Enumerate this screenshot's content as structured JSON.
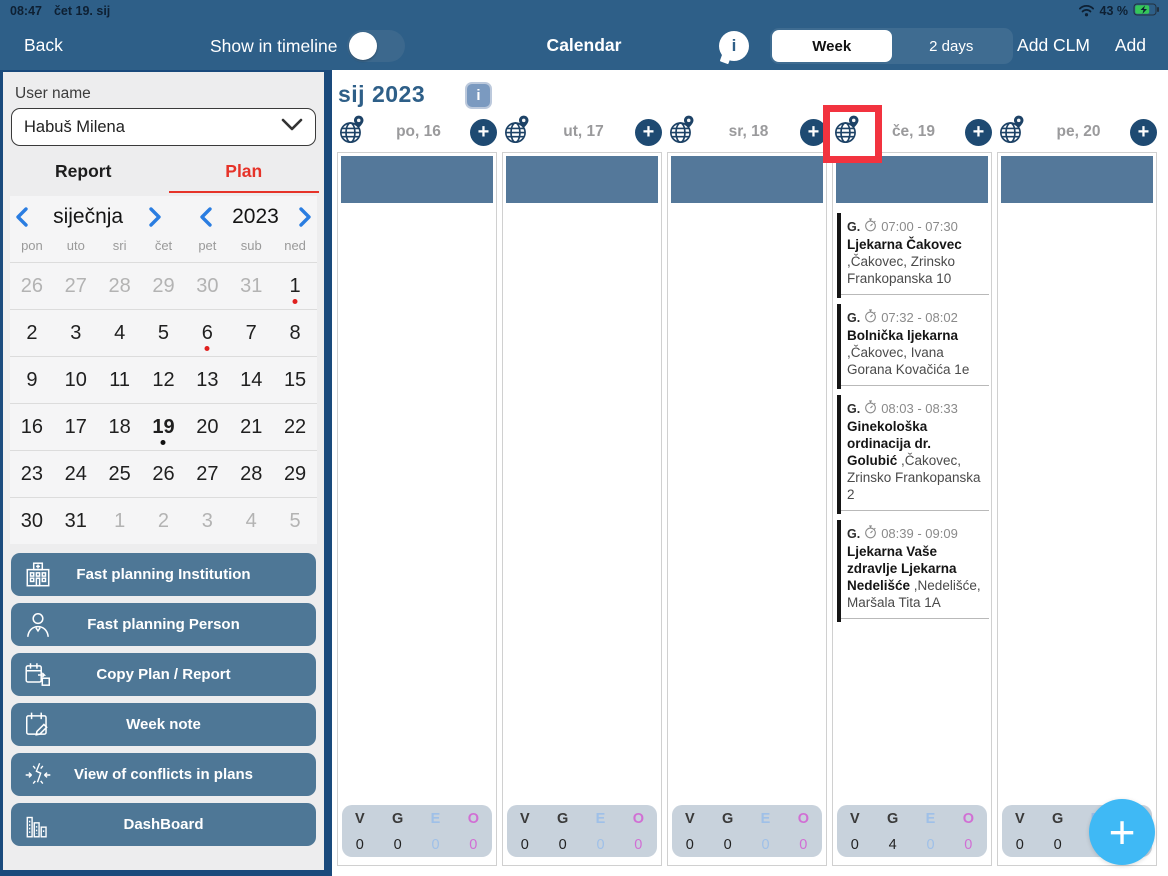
{
  "status_bar": {
    "time": "08:47",
    "date": "čet 19. sij",
    "battery": "43 %"
  },
  "nav": {
    "back": "Back",
    "show_in_timeline": "Show in timeline",
    "toggle_state": "off",
    "title": "Calendar",
    "segments": {
      "week": "Week",
      "two_days": "2 days",
      "selected": "Week"
    },
    "add_clm": "Add CLM",
    "add": "Add"
  },
  "sidebar": {
    "user_name_label": "User name",
    "user_select_value": "Habuš Milena",
    "tabs": {
      "report": "Report",
      "plan": "Plan",
      "active": "Plan"
    },
    "month_nav": {
      "month": "siječnja",
      "year": "2023"
    },
    "weekdays": [
      "pon",
      "uto",
      "sri",
      "čet",
      "pet",
      "sub",
      "ned"
    ],
    "calendar_rows": [
      [
        {
          "d": "26",
          "muted": true
        },
        {
          "d": "27",
          "muted": true
        },
        {
          "d": "28",
          "muted": true
        },
        {
          "d": "29",
          "muted": true
        },
        {
          "d": "30",
          "muted": true
        },
        {
          "d": "31",
          "muted": true
        },
        {
          "d": "1",
          "dot": "red"
        }
      ],
      [
        {
          "d": "2"
        },
        {
          "d": "3"
        },
        {
          "d": "4"
        },
        {
          "d": "5"
        },
        {
          "d": "6",
          "dot": "red"
        },
        {
          "d": "7"
        },
        {
          "d": "8"
        }
      ],
      [
        {
          "d": "9"
        },
        {
          "d": "10"
        },
        {
          "d": "11"
        },
        {
          "d": "12"
        },
        {
          "d": "13"
        },
        {
          "d": "14"
        },
        {
          "d": "15"
        }
      ],
      [
        {
          "d": "16"
        },
        {
          "d": "17"
        },
        {
          "d": "18"
        },
        {
          "d": "19",
          "bold": true,
          "dot": "black"
        },
        {
          "d": "20"
        },
        {
          "d": "21"
        },
        {
          "d": "22"
        }
      ],
      [
        {
          "d": "23"
        },
        {
          "d": "24"
        },
        {
          "d": "25"
        },
        {
          "d": "26"
        },
        {
          "d": "27"
        },
        {
          "d": "28"
        },
        {
          "d": "29"
        }
      ],
      [
        {
          "d": "30"
        },
        {
          "d": "31"
        },
        {
          "d": "1",
          "muted": true
        },
        {
          "d": "2",
          "muted": true
        },
        {
          "d": "3",
          "muted": true
        },
        {
          "d": "4",
          "muted": true
        },
        {
          "d": "5",
          "muted": true
        }
      ]
    ],
    "buttons": [
      {
        "label": "Fast planning Institution",
        "icon": "institution-icon"
      },
      {
        "label": "Fast planning Person",
        "icon": "person-icon"
      },
      {
        "label": "Copy Plan / Report",
        "icon": "copy-plan-icon"
      },
      {
        "label": "Week note",
        "icon": "week-note-icon"
      },
      {
        "label": "View of conflicts in plans",
        "icon": "conflicts-icon"
      },
      {
        "label": "DashBoard",
        "icon": "dashboard-icon"
      }
    ]
  },
  "main": {
    "month_title": "sij 2023",
    "info_badge": "i",
    "days": [
      {
        "label": "po, 16",
        "highlighted": false
      },
      {
        "label": "ut, 17",
        "highlighted": false
      },
      {
        "label": "sr, 18",
        "highlighted": false
      },
      {
        "label": "če, 19",
        "highlighted": true
      },
      {
        "label": "pe, 20",
        "highlighted": false
      }
    ],
    "appointments_day_index": 3,
    "appointments": [
      {
        "prefix": "G.",
        "time": "07:00 - 07:30",
        "name": "Ljekarna Čakovec",
        "address": " ,Čakovec, Zrinsko Frankopanska 10"
      },
      {
        "prefix": "G.",
        "time": "07:32 - 08:02",
        "name": "Bolnička ljekarna",
        "address": " ,Čakovec, Ivana Gorana Kovačića 1e"
      },
      {
        "prefix": "G.",
        "time": "08:03 - 08:33",
        "name": "Ginekološka ordinacija dr. Golubić",
        "address": " ,Čakovec, Zrinsko Frankopanska 2"
      },
      {
        "prefix": "G.",
        "time": "08:39 - 09:09",
        "name": "Ljekarna Vaše zdravlje Ljekarna Nedelišće",
        "address": " ,Nedelišće, Maršala Tita 1A"
      }
    ],
    "counter_letters": [
      "V",
      "G",
      "E",
      "O"
    ],
    "counters": [
      [
        0,
        0,
        0,
        0
      ],
      [
        0,
        0,
        0,
        0
      ],
      [
        0,
        0,
        0,
        0
      ],
      [
        0,
        4,
        0,
        0
      ],
      [
        0,
        0,
        0,
        0
      ]
    ]
  },
  "colors": {
    "navbar_bg": "#2e5f88",
    "outer_bg": "#1a4a7c",
    "allday_bar": "#54789a",
    "sidebar_button": "#4e7796",
    "counter_bg": "#c8d2dc",
    "counter_e": "#9fc0e8",
    "counter_o": "#d16fd4",
    "fab_blue": "#3fb9f5",
    "accent_red": "#e63329",
    "highlight_red": "#f2333f",
    "chevron_blue": "#2a7de1",
    "icon_navy": "#1d4266",
    "battery_green": "#35c759"
  }
}
